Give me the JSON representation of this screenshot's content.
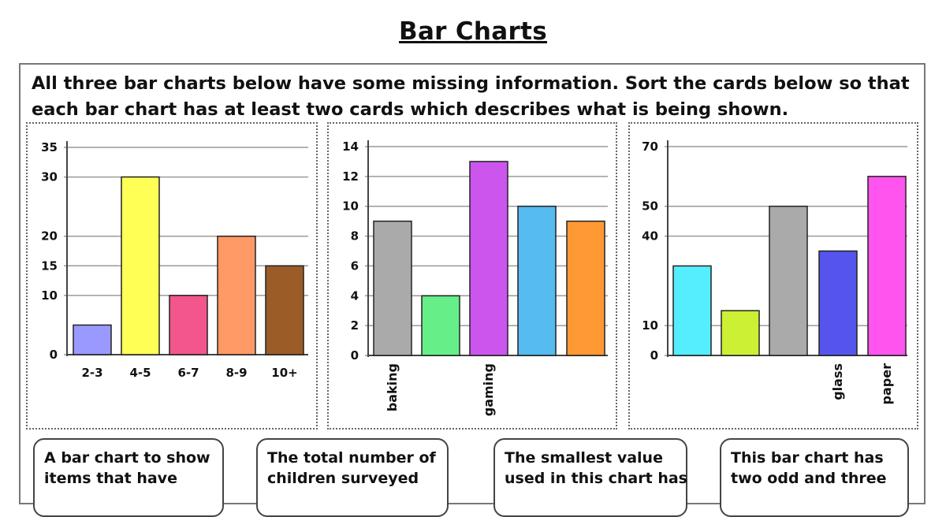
{
  "title": "Bar Charts",
  "instructions": [
    "All three bar charts below have some missing information. Sort the cards below so that",
    "each bar chart has at least two cards which describes what is being shown."
  ],
  "chart_data": [
    {
      "type": "bar",
      "categories": [
        "2-3",
        "4-5",
        "6-7",
        "8-9",
        "10+"
      ],
      "values": [
        5,
        30,
        10,
        20,
        15
      ],
      "colors": [
        "#9999ff",
        "#ffff55",
        "#f2568c",
        "#ff9966",
        "#9b5c28"
      ],
      "yticks": [
        0,
        10,
        15,
        20,
        30,
        35
      ],
      "ylim": [
        0,
        35
      ],
      "tick_labels_rotated": false
    },
    {
      "type": "bar",
      "categories": [
        "baking",
        "",
        "gaming",
        "",
        ""
      ],
      "values": [
        9,
        4,
        13,
        10,
        9
      ],
      "colors": [
        "#aaaaaa",
        "#66ee88",
        "#cc55ee",
        "#55bbf0",
        "#ff9933"
      ],
      "yticks": [
        0,
        2,
        4,
        6,
        8,
        10,
        12,
        14
      ],
      "ylim": [
        0,
        14
      ],
      "tick_labels_rotated": true
    },
    {
      "type": "bar",
      "categories": [
        "",
        "",
        "",
        "glass",
        "paper"
      ],
      "values": [
        30,
        15,
        50,
        35,
        60
      ],
      "colors": [
        "#55eeff",
        "#ccf033",
        "#aaaaaa",
        "#5555ee",
        "#ff55ee"
      ],
      "yticks": [
        0,
        10,
        40,
        50,
        70
      ],
      "ylim": [
        0,
        70
      ],
      "tick_labels_rotated": true
    }
  ],
  "cards": [
    {
      "lines": [
        "A bar chart to show",
        "items that have"
      ]
    },
    {
      "lines": [
        "The total number of",
        "children surveyed"
      ]
    },
    {
      "lines": [
        "The smallest value",
        "used in this chart has"
      ]
    },
    {
      "lines": [
        "This bar chart has",
        "two odd and three"
      ]
    }
  ]
}
